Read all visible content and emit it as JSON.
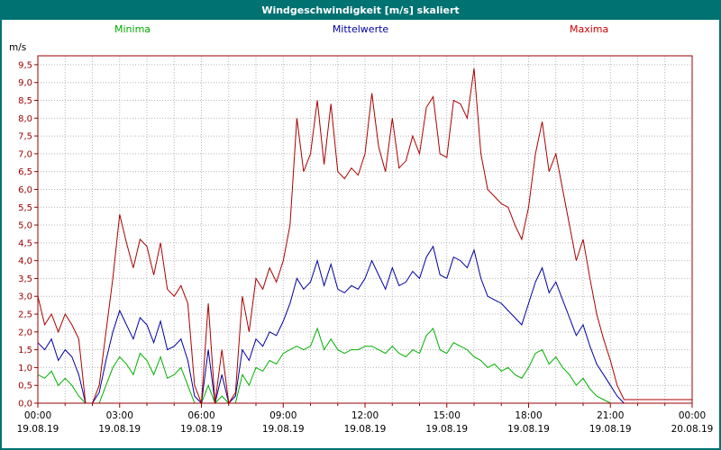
{
  "window": {
    "title": "Windgeschwindigkeit [m/s] skaliert",
    "titlebar_color": "#007272",
    "border_color": "#007272"
  },
  "legend": [
    {
      "label": "Minima",
      "color": "#00a800"
    },
    {
      "label": "Mittelwerte",
      "color": "#0000a0"
    },
    {
      "label": "Maxima",
      "color": "#cc0000"
    }
  ],
  "chart_data": {
    "type": "line",
    "title": "Windgeschwindigkeit [m/s] skaliert",
    "ylabel": "m/s",
    "ylim": [
      0,
      9.75
    ],
    "y_tick_step": 0.5,
    "y_ticks": [
      "9,5",
      "9,0",
      "8,5",
      "8,0",
      "7,5",
      "7,0",
      "6,5",
      "6,0",
      "5,5",
      "5,0",
      "4,5",
      "4,0",
      "3,5",
      "3,0",
      "2,5",
      "2,0",
      "1,5",
      "1,0",
      "0,5",
      "0,0"
    ],
    "x_ticks": [
      "00:00",
      "03:00",
      "06:00",
      "09:00",
      "12:00",
      "15:00",
      "18:00",
      "21:00",
      "00:00"
    ],
    "x_dates": [
      "19.08.19",
      "19.08.19",
      "19.08.19",
      "19.08.19",
      "19.08.19",
      "19.08.19",
      "19.08.19",
      "19.08.19",
      "20.08.19"
    ],
    "x_hours_total": 24,
    "sample_interval_minutes": 15,
    "grid": "dotted; vertical every hour, horizontal every 0.5 m/s",
    "legend_position": "top",
    "axis_color": "#990000",
    "series": [
      {
        "name": "Minima",
        "color": "#00b000",
        "values": [
          0.8,
          0.7,
          0.9,
          0.5,
          0.7,
          0.5,
          0.2,
          0.0,
          0.0,
          0.0,
          0.5,
          1.0,
          1.3,
          1.1,
          0.8,
          1.4,
          1.2,
          0.8,
          1.3,
          0.7,
          0.8,
          1.0,
          0.5,
          0.0,
          0.0,
          0.5,
          0.0,
          0.2,
          0.0,
          0.0,
          0.8,
          0.5,
          1.0,
          0.9,
          1.2,
          1.1,
          1.4,
          1.5,
          1.6,
          1.5,
          1.6,
          2.1,
          1.5,
          1.8,
          1.5,
          1.4,
          1.5,
          1.5,
          1.6,
          1.6,
          1.5,
          1.4,
          1.6,
          1.4,
          1.3,
          1.5,
          1.4,
          1.9,
          2.1,
          1.5,
          1.4,
          1.7,
          1.6,
          1.5,
          1.3,
          1.2,
          1.0,
          1.1,
          0.9,
          1.0,
          0.8,
          0.7,
          1.0,
          1.4,
          1.5,
          1.1,
          1.3,
          1.0,
          0.8,
          0.5,
          0.7,
          0.4,
          0.2,
          0.1,
          0.0,
          0.0,
          0.0,
          0.0,
          0.0,
          0.0,
          0.0,
          0.0,
          0.0,
          0.0,
          0.0,
          0.0,
          0.0
        ]
      },
      {
        "name": "Mittelwerte",
        "color": "#0000a0",
        "values": [
          1.7,
          1.5,
          1.8,
          1.2,
          1.5,
          1.3,
          0.8,
          0.0,
          0.0,
          0.3,
          1.2,
          2.0,
          2.6,
          2.2,
          1.8,
          2.4,
          2.2,
          1.7,
          2.3,
          1.5,
          1.6,
          1.8,
          1.2,
          0.2,
          0.0,
          1.5,
          0.0,
          0.8,
          0.0,
          0.2,
          1.5,
          1.2,
          1.8,
          1.6,
          2.0,
          1.9,
          2.3,
          2.8,
          3.5,
          3.2,
          3.4,
          4.0,
          3.3,
          3.9,
          3.2,
          3.1,
          3.3,
          3.2,
          3.5,
          4.0,
          3.6,
          3.2,
          3.8,
          3.3,
          3.4,
          3.7,
          3.5,
          4.1,
          4.4,
          3.6,
          3.5,
          4.1,
          4.0,
          3.8,
          4.3,
          3.5,
          3.0,
          2.9,
          2.8,
          2.6,
          2.4,
          2.2,
          2.8,
          3.4,
          3.8,
          3.1,
          3.4,
          2.9,
          2.4,
          1.9,
          2.2,
          1.6,
          1.1,
          0.8,
          0.5,
          0.2,
          0.0,
          0.0,
          0.0,
          0.0,
          0.0,
          0.0,
          0.0,
          0.0,
          0.0,
          0.0,
          0.0
        ]
      },
      {
        "name": "Maxima",
        "color": "#aa0000",
        "values": [
          3.0,
          2.2,
          2.5,
          2.0,
          2.5,
          2.2,
          1.8,
          0.0,
          0.0,
          0.5,
          2.0,
          3.5,
          5.3,
          4.5,
          3.8,
          4.6,
          4.4,
          3.6,
          4.5,
          3.2,
          3.0,
          3.3,
          2.8,
          0.5,
          0.0,
          2.8,
          0.0,
          1.5,
          0.0,
          0.3,
          3.0,
          2.0,
          3.5,
          3.2,
          3.8,
          3.4,
          4.0,
          5.0,
          8.0,
          6.5,
          7.0,
          8.5,
          6.7,
          8.4,
          6.5,
          6.3,
          6.6,
          6.4,
          7.0,
          8.7,
          7.2,
          6.5,
          8.0,
          6.6,
          6.8,
          7.5,
          7.0,
          8.3,
          8.6,
          7.0,
          6.9,
          8.5,
          8.4,
          8.0,
          9.4,
          7.0,
          6.0,
          5.8,
          5.6,
          5.5,
          5.0,
          4.6,
          5.5,
          7.0,
          7.9,
          6.5,
          7.0,
          6.0,
          5.0,
          4.0,
          4.6,
          3.5,
          2.5,
          1.8,
          1.2,
          0.5,
          0.1,
          0.1,
          0.1,
          0.1,
          0.1,
          0.1,
          0.1,
          0.1,
          0.1,
          0.1,
          0.1
        ]
      }
    ]
  }
}
